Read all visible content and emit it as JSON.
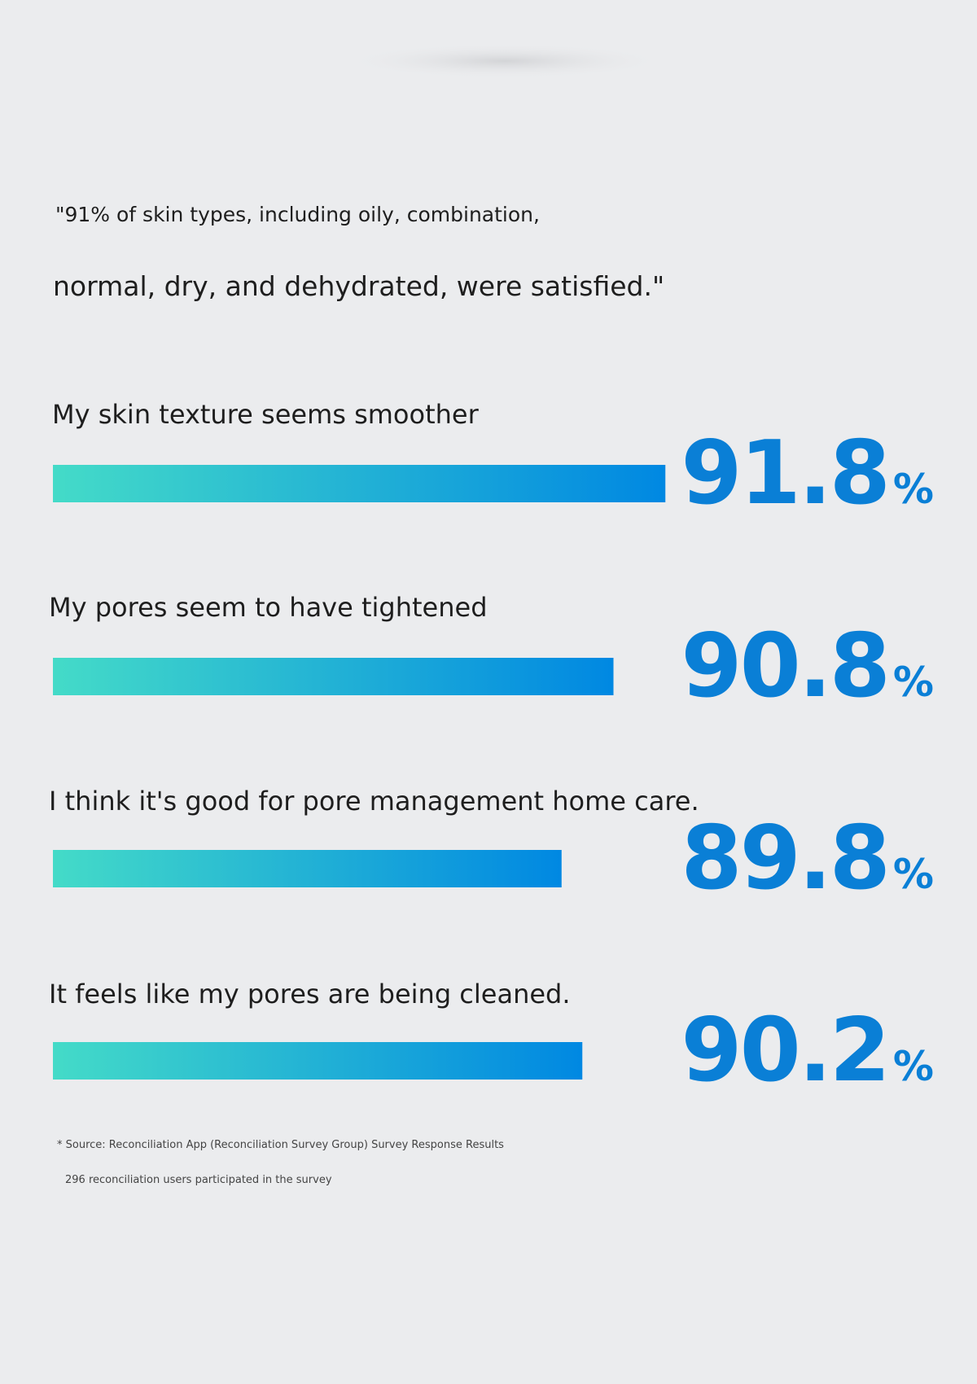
{
  "chart_data": {
    "type": "bar",
    "orientation": "horizontal",
    "quote_lines": [
      "\"91% of skin types, including oily, combination,",
      "normal, dry, and dehydrated, were satisfied.\""
    ],
    "categories": [
      "My skin texture seems smoother",
      "My pores seem to have tightened",
      "I think it's good for pore management home care.",
      "It feels like my pores are being cleaned."
    ],
    "values": [
      91.8,
      90.8,
      89.8,
      90.2
    ],
    "value_labels": [
      "91.8%",
      "90.8%",
      "89.8%",
      "90.2%"
    ],
    "xlim": [
      80,
      92
    ],
    "color_start": "#44dbc8",
    "color_end": "#0088e2",
    "label_color": "#0a7fd6",
    "notes": [
      "* Source: Reconciliation App (Reconciliation Survey Group) Survey Response Results",
      "296 reconciliation users participated in the survey"
    ]
  }
}
